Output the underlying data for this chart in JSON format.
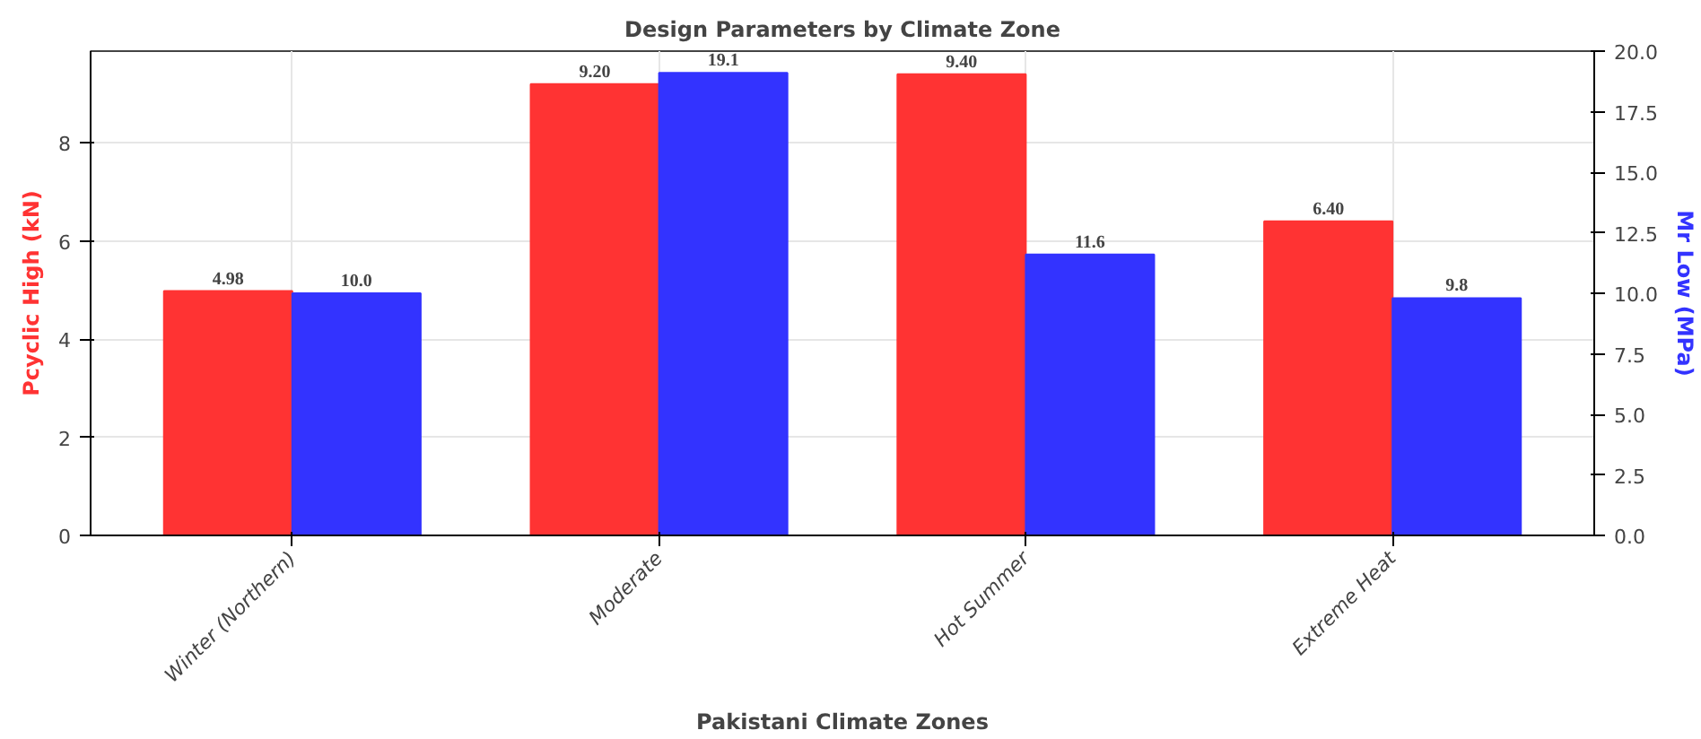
{
  "chart_data": {
    "type": "bar",
    "title": "Design Parameters by Climate Zone",
    "xlabel": "Pakistani Climate Zones",
    "ylabel": "Pcyclic High (kN)",
    "y2label": "Mr Low (MPa)",
    "categories": [
      "Winter (Northern)",
      "Moderate",
      "Hot Summer",
      "Extreme Heat"
    ],
    "series": [
      {
        "color": "#ff3333",
        "values": [
          4.98,
          9.2,
          9.4,
          6.4
        ],
        "value_labels": [
          "4.98",
          "9.20",
          "9.40",
          "6.40"
        ]
      },
      {
        "color": "#3333ff",
        "values": [
          10.0,
          19.1,
          11.6,
          9.8
        ],
        "value_labels": [
          "10.0",
          "19.1",
          "11.6",
          "9.8"
        ],
        "axis": "y2"
      }
    ],
    "ylim": [
      0,
      9.87
    ],
    "yticks": [
      0,
      2,
      4,
      6,
      8
    ],
    "y2lim": [
      0,
      20
    ],
    "y2ticks": [
      {
        "value": 0,
        "label": "0.0"
      },
      {
        "value": 2.5,
        "label": "2.5"
      },
      {
        "value": 5,
        "label": "5.0"
      },
      {
        "value": 7.5,
        "label": "7.5"
      },
      {
        "value": 10,
        "label": "10.0"
      },
      {
        "value": 12.5,
        "label": "12.5"
      },
      {
        "value": 15,
        "label": "15.0"
      },
      {
        "value": 17.5,
        "label": "17.5"
      },
      {
        "value": 20,
        "label": "20.0"
      }
    ],
    "grid": true
  }
}
